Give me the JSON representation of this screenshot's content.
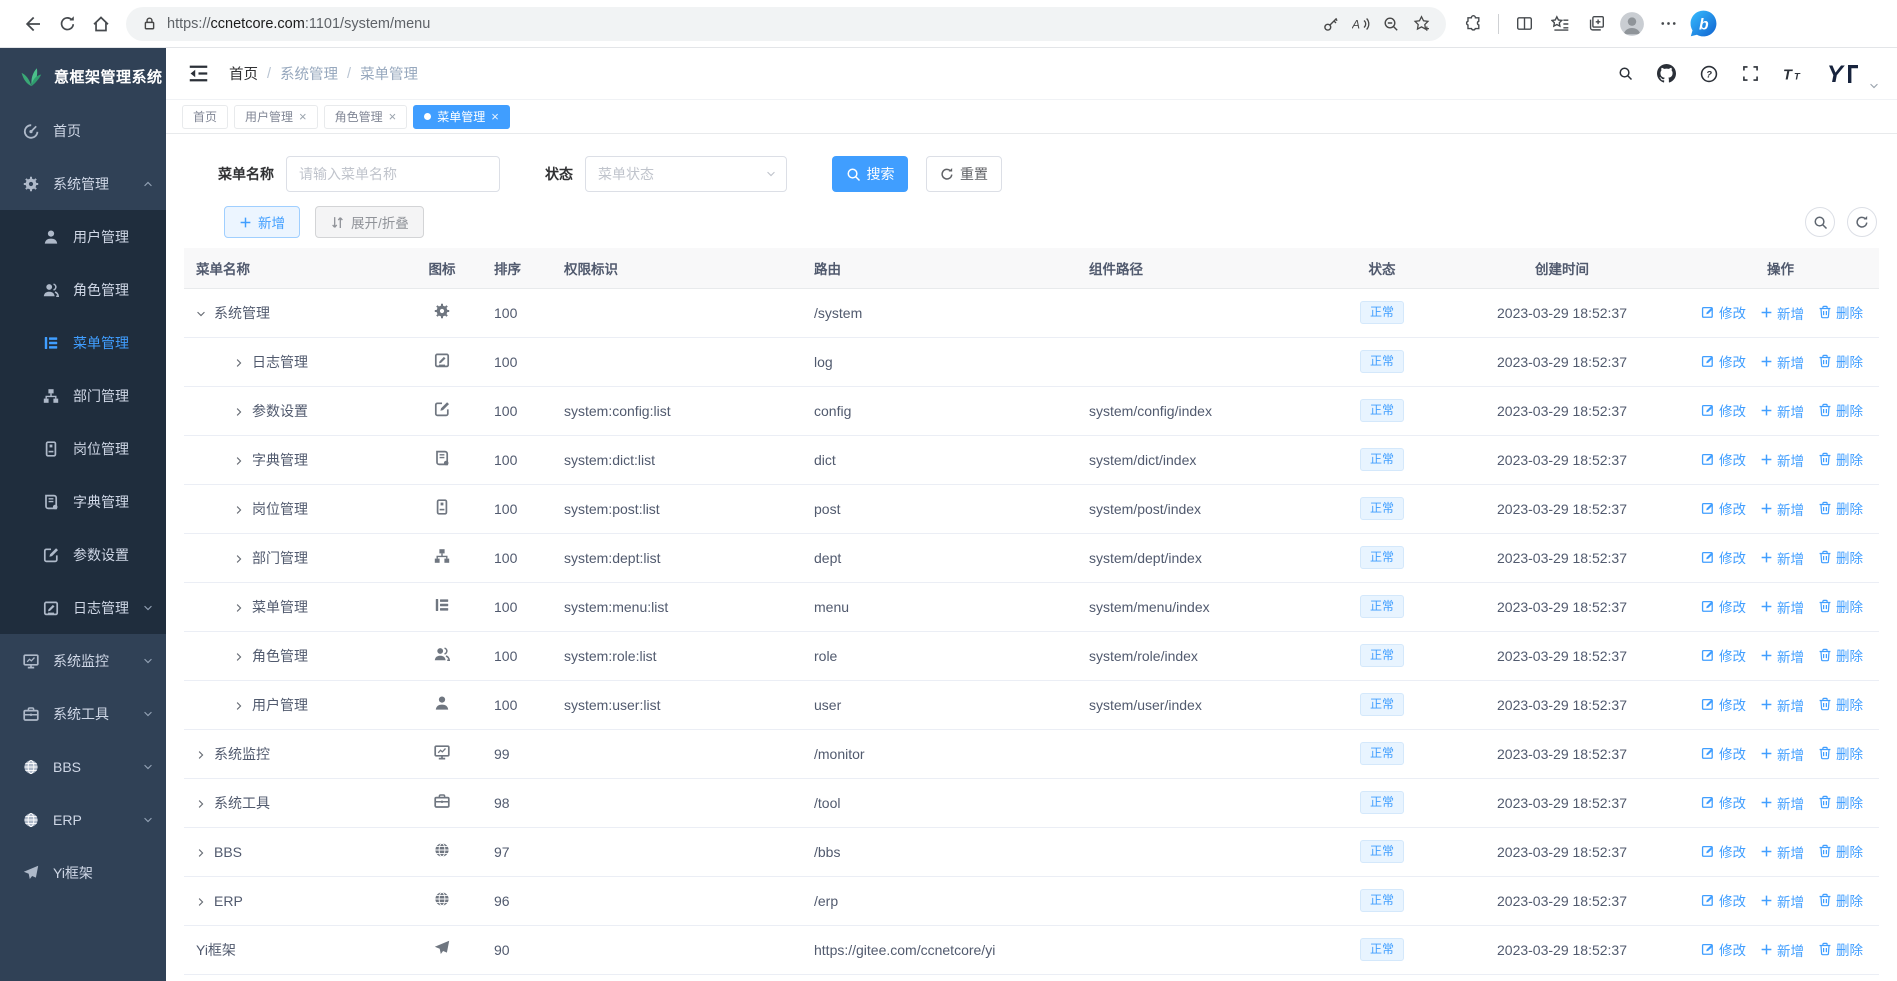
{
  "browser": {
    "url_scheme": "https://",
    "url_host": "ccnetcore.com",
    "url_rest": ":1101/system/menu"
  },
  "sidebar": {
    "logo_text": "意框架管理系统",
    "items": [
      {
        "label": "首页",
        "icon": "gauge",
        "arrow": "none"
      },
      {
        "label": "系统管理",
        "icon": "gear",
        "arrow": "up",
        "children": [
          {
            "label": "用户管理",
            "icon": "user",
            "arrow": "none"
          },
          {
            "label": "角色管理",
            "icon": "users",
            "arrow": "none"
          },
          {
            "label": "菜单管理",
            "icon": "menu",
            "arrow": "none",
            "active": true
          },
          {
            "label": "部门管理",
            "icon": "dept",
            "arrow": "none"
          },
          {
            "label": "岗位管理",
            "icon": "post",
            "arrow": "none"
          },
          {
            "label": "字典管理",
            "icon": "dict",
            "arrow": "none"
          },
          {
            "label": "参数设置",
            "icon": "config",
            "arrow": "none"
          },
          {
            "label": "日志管理",
            "icon": "log",
            "arrow": "down"
          }
        ]
      },
      {
        "label": "系统监控",
        "icon": "monitor",
        "arrow": "down"
      },
      {
        "label": "系统工具",
        "icon": "tool",
        "arrow": "down"
      },
      {
        "label": "BBS",
        "icon": "globe",
        "arrow": "down"
      },
      {
        "label": "ERP",
        "icon": "globe",
        "arrow": "down"
      },
      {
        "label": "Yi框架",
        "icon": "plane",
        "arrow": "none"
      }
    ]
  },
  "header": {
    "breadcrumb": [
      "首页",
      "系统管理",
      "菜单管理"
    ]
  },
  "tabs": [
    {
      "label": "首页",
      "closable": false,
      "active": false
    },
    {
      "label": "用户管理",
      "closable": true,
      "active": false
    },
    {
      "label": "角色管理",
      "closable": true,
      "active": false
    },
    {
      "label": "菜单管理",
      "closable": true,
      "active": true
    }
  ],
  "search": {
    "name_label": "菜单名称",
    "name_placeholder": "请输入菜单名称",
    "status_label": "状态",
    "status_placeholder": "菜单状态",
    "search_btn": "搜索",
    "reset_btn": "重置"
  },
  "toolbar": {
    "add_label": "新增",
    "expand_label": "展开/折叠"
  },
  "table": {
    "columns": [
      "菜单名称",
      "图标",
      "排序",
      "权限标识",
      "路由",
      "组件路径",
      "状态",
      "创建时间",
      "操作"
    ],
    "op_labels": [
      "修改",
      "新增",
      "删除"
    ],
    "rows": [
      {
        "level": 0,
        "arrow": "down",
        "name": "系统管理",
        "icon": "gear",
        "sort": "100",
        "perm": "",
        "route": "/system",
        "comp": "",
        "status": "正常",
        "created": "2023-03-29 18:52:37"
      },
      {
        "level": 1,
        "arrow": "right",
        "name": "日志管理",
        "icon": "log",
        "sort": "100",
        "perm": "",
        "route": "log",
        "comp": "",
        "status": "正常",
        "created": "2023-03-29 18:52:37"
      },
      {
        "level": 1,
        "arrow": "right",
        "name": "参数设置",
        "icon": "config",
        "sort": "100",
        "perm": "system:config:list",
        "route": "config",
        "comp": "system/config/index",
        "status": "正常",
        "created": "2023-03-29 18:52:37"
      },
      {
        "level": 1,
        "arrow": "right",
        "name": "字典管理",
        "icon": "dict",
        "sort": "100",
        "perm": "system:dict:list",
        "route": "dict",
        "comp": "system/dict/index",
        "status": "正常",
        "created": "2023-03-29 18:52:37"
      },
      {
        "level": 1,
        "arrow": "right",
        "name": "岗位管理",
        "icon": "post",
        "sort": "100",
        "perm": "system:post:list",
        "route": "post",
        "comp": "system/post/index",
        "status": "正常",
        "created": "2023-03-29 18:52:37"
      },
      {
        "level": 1,
        "arrow": "right",
        "name": "部门管理",
        "icon": "dept",
        "sort": "100",
        "perm": "system:dept:list",
        "route": "dept",
        "comp": "system/dept/index",
        "status": "正常",
        "created": "2023-03-29 18:52:37"
      },
      {
        "level": 1,
        "arrow": "right",
        "name": "菜单管理",
        "icon": "menu",
        "sort": "100",
        "perm": "system:menu:list",
        "route": "menu",
        "comp": "system/menu/index",
        "status": "正常",
        "created": "2023-03-29 18:52:37"
      },
      {
        "level": 1,
        "arrow": "right",
        "name": "角色管理",
        "icon": "users",
        "sort": "100",
        "perm": "system:role:list",
        "route": "role",
        "comp": "system/role/index",
        "status": "正常",
        "created": "2023-03-29 18:52:37"
      },
      {
        "level": 1,
        "arrow": "right",
        "name": "用户管理",
        "icon": "user",
        "sort": "100",
        "perm": "system:user:list",
        "route": "user",
        "comp": "system/user/index",
        "status": "正常",
        "created": "2023-03-29 18:52:37"
      },
      {
        "level": 0,
        "arrow": "right",
        "name": "系统监控",
        "icon": "monitor",
        "sort": "99",
        "perm": "",
        "route": "/monitor",
        "comp": "",
        "status": "正常",
        "created": "2023-03-29 18:52:37"
      },
      {
        "level": 0,
        "arrow": "right",
        "name": "系统工具",
        "icon": "tool",
        "sort": "98",
        "perm": "",
        "route": "/tool",
        "comp": "",
        "status": "正常",
        "created": "2023-03-29 18:52:37"
      },
      {
        "level": 0,
        "arrow": "right",
        "name": "BBS",
        "icon": "globe",
        "sort": "97",
        "perm": "",
        "route": "/bbs",
        "comp": "",
        "status": "正常",
        "created": "2023-03-29 18:52:37"
      },
      {
        "level": 0,
        "arrow": "right",
        "name": "ERP",
        "icon": "globe",
        "sort": "96",
        "perm": "",
        "route": "/erp",
        "comp": "",
        "status": "正常",
        "created": "2023-03-29 18:52:37"
      },
      {
        "level": 0,
        "arrow": "none",
        "name": "Yi框架",
        "icon": "plane",
        "sort": "90",
        "perm": "",
        "route": "https://gitee.com/ccnetcore/yi",
        "comp": "",
        "status": "正常",
        "created": "2023-03-29 18:52:37"
      }
    ]
  }
}
